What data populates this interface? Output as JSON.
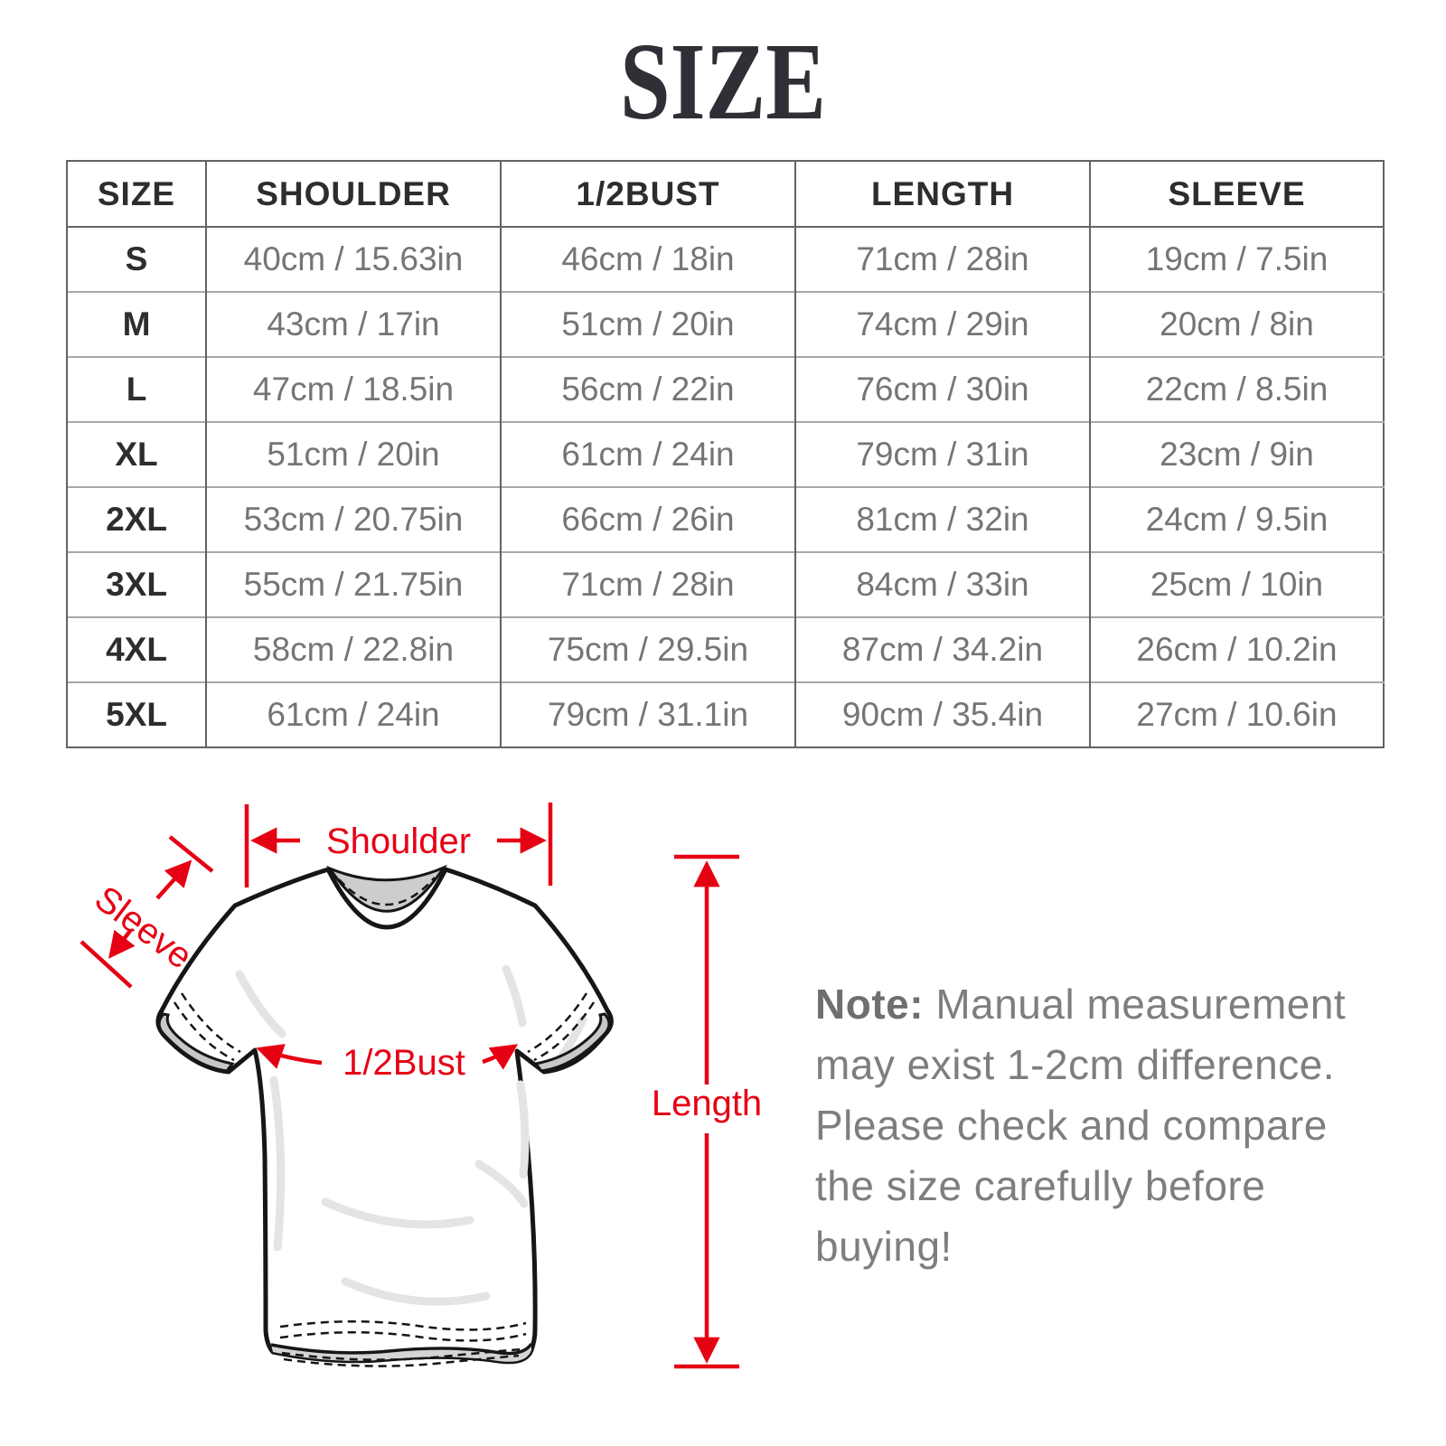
{
  "title": "SIZE",
  "table": {
    "columns": [
      "SIZE",
      "SHOULDER",
      "1/2BUST",
      "LENGTH",
      "SLEEVE"
    ],
    "rows": [
      {
        "size": "S",
        "values": [
          "40cm / 15.63in",
          "46cm / 18in",
          "71cm / 28in",
          "19cm / 7.5in"
        ]
      },
      {
        "size": "M",
        "values": [
          "43cm / 17in",
          "51cm / 20in",
          "74cm / 29in",
          "20cm / 8in"
        ]
      },
      {
        "size": "L",
        "values": [
          "47cm / 18.5in",
          "56cm / 22in",
          "76cm / 30in",
          "22cm / 8.5in"
        ]
      },
      {
        "size": "XL",
        "values": [
          "51cm / 20in",
          "61cm / 24in",
          "79cm / 31in",
          "23cm / 9in"
        ]
      },
      {
        "size": "2XL",
        "values": [
          "53cm / 20.75in",
          "66cm / 26in",
          "81cm / 32in",
          "24cm / 9.5in"
        ]
      },
      {
        "size": "3XL",
        "values": [
          "55cm / 21.75in",
          "71cm / 28in",
          "84cm / 33in",
          "25cm / 10in"
        ]
      },
      {
        "size": "4XL",
        "values": [
          "58cm / 22.8in",
          "75cm / 29.5in",
          "87cm / 34.2in",
          "26cm / 10.2in"
        ]
      },
      {
        "size": "5XL",
        "values": [
          "61cm / 24in",
          "79cm / 31.1in",
          "90cm / 35.4in",
          "27cm / 10.6in"
        ]
      }
    ]
  },
  "diagram": {
    "annotation_color": "#e60014",
    "labels": {
      "shoulder": "Shoulder",
      "sleeve": "Sleeve",
      "half_bust": "1/2Bust",
      "length": "Length"
    }
  },
  "note": {
    "label": "Note:",
    "text": " Manual measurement may exist 1-2cm difference. Please check and compare the size carefully before buying!"
  }
}
